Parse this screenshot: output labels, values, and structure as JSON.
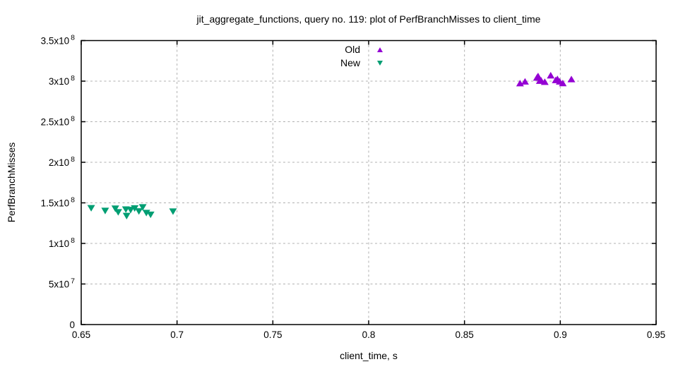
{
  "chart_data": {
    "type": "scatter",
    "title": "jit_aggregate_functions, query no. 119: plot of PerfBranchMisses to client_time",
    "xlabel": "client_time, s",
    "ylabel": "PerfBranchMisses",
    "xlim": [
      0.65,
      0.95
    ],
    "ylim": [
      0,
      350000000
    ],
    "x_tick_values": [
      0.65,
      0.7,
      0.75,
      0.8,
      0.85,
      0.9,
      0.95
    ],
    "x_tick_labels": [
      "0.65",
      "0.7",
      "0.75",
      "0.8",
      "0.85",
      "0.9",
      "0.95"
    ],
    "y_tick_values": [
      0,
      50000000,
      100000000,
      150000000,
      200000000,
      250000000,
      300000000,
      350000000
    ],
    "y_tick_labels": [
      {
        "mantissa": "0",
        "exponent": ""
      },
      {
        "mantissa": "5x10",
        "exponent": "7"
      },
      {
        "mantissa": "1x10",
        "exponent": "8"
      },
      {
        "mantissa": "1.5x10",
        "exponent": "8"
      },
      {
        "mantissa": "2x10",
        "exponent": "8"
      },
      {
        "mantissa": "2.5x10",
        "exponent": "8"
      },
      {
        "mantissa": "3x10",
        "exponent": "8"
      },
      {
        "mantissa": "3.5x10",
        "exponent": "8"
      }
    ],
    "grid": true,
    "grid_color": "#b0b0b0",
    "border_color": "#000000",
    "legend_position": "top-center-inside",
    "series": [
      {
        "name": "Old",
        "marker": "triangle-up",
        "color": "#9400d3",
        "points": [
          [
            0.879,
            297000000
          ],
          [
            0.8816,
            299100000
          ],
          [
            0.8878,
            303900000
          ],
          [
            0.8884,
            305700000
          ],
          [
            0.8893,
            300000000
          ],
          [
            0.89,
            300400000
          ],
          [
            0.8919,
            298700000
          ],
          [
            0.895,
            306700000
          ],
          [
            0.8976,
            300900000
          ],
          [
            0.8985,
            302200000
          ],
          [
            0.8997,
            299100000
          ],
          [
            0.9013,
            297100000
          ],
          [
            0.9058,
            302000000
          ]
        ]
      },
      {
        "name": "New",
        "marker": "triangle-down",
        "color": "#009e73",
        "points": [
          [
            0.6552,
            143900000
          ],
          [
            0.6625,
            140600000
          ],
          [
            0.6678,
            143300000
          ],
          [
            0.6693,
            138900000
          ],
          [
            0.6733,
            142300000
          ],
          [
            0.6737,
            134300000
          ],
          [
            0.6758,
            141700000
          ],
          [
            0.6779,
            143700000
          ],
          [
            0.6801,
            140000000
          ],
          [
            0.6821,
            145000000
          ],
          [
            0.684,
            138000000
          ],
          [
            0.6862,
            135900000
          ],
          [
            0.6979,
            139800000
          ]
        ]
      }
    ]
  }
}
